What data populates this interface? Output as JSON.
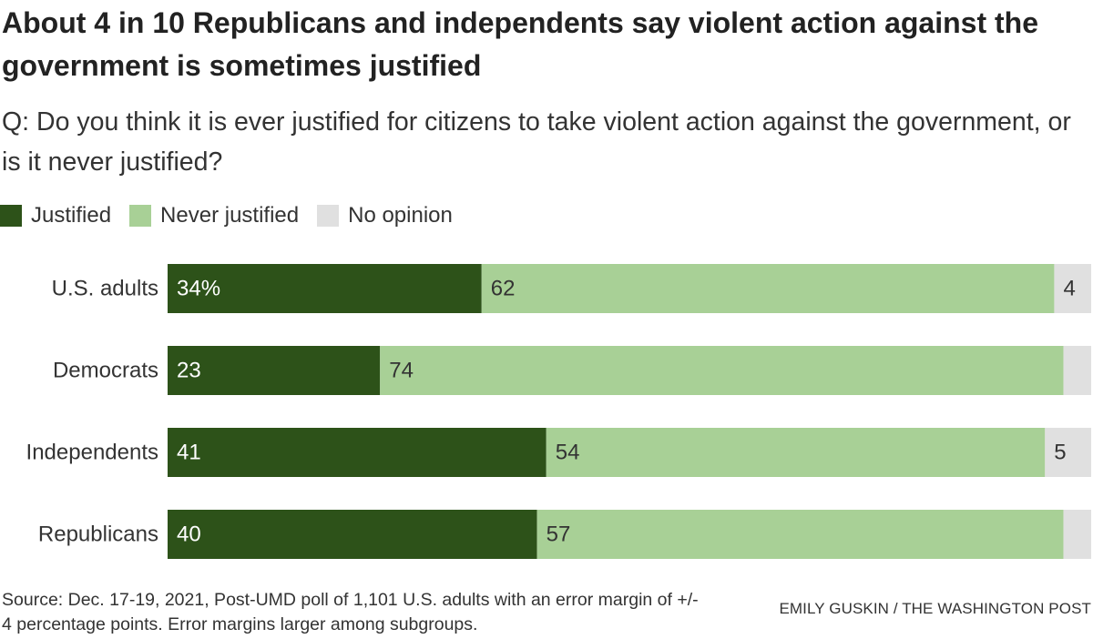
{
  "header": {
    "title": "About 4 in 10 Republicans and independents say violent action against the government is sometimes justified",
    "subtitle": "Q: Do you think it is ever justified for citizens to take violent action against the government, or is it never justified?"
  },
  "legend": {
    "items": [
      {
        "label": "Justified",
        "color": "#2d5219"
      },
      {
        "label": "Never justified",
        "color": "#a8d096"
      },
      {
        "label": "No opinion",
        "color": "#e0e0e0"
      }
    ]
  },
  "chart_data": {
    "type": "bar",
    "orientation": "horizontal",
    "stacked": true,
    "title": "About 4 in 10 Republicans and independents say violent action against the government is sometimes justified",
    "xlabel": "",
    "ylabel": "",
    "xlim": [
      0,
      100
    ],
    "grid": false,
    "legend_position": "top-left",
    "categories": [
      "U.S. adults",
      "Democrats",
      "Independents",
      "Republicans"
    ],
    "series": [
      {
        "name": "Justified",
        "color": "#2d5219",
        "label_color": "#ffffff",
        "values": [
          34,
          23,
          41,
          40
        ],
        "labels": [
          "34%",
          "23",
          "41",
          "40"
        ]
      },
      {
        "name": "Never justified",
        "color": "#a8d096",
        "label_color": "#333333",
        "values": [
          62,
          74,
          54,
          57
        ],
        "labels": [
          "62",
          "74",
          "54",
          "57"
        ]
      },
      {
        "name": "No opinion",
        "color": "#e0e0e0",
        "label_color": "#333333",
        "values": [
          4,
          3,
          5,
          3
        ],
        "labels": [
          "4",
          "",
          "5",
          ""
        ]
      }
    ]
  },
  "footer": {
    "source": "Source: Dec. 17-19, 2021, Post-UMD poll of 1,101 U.S. adults with an error margin of +/- 4 percentage points. Error margins larger among subgroups.",
    "credit": "EMILY GUSKIN / THE WASHINGTON POST"
  }
}
